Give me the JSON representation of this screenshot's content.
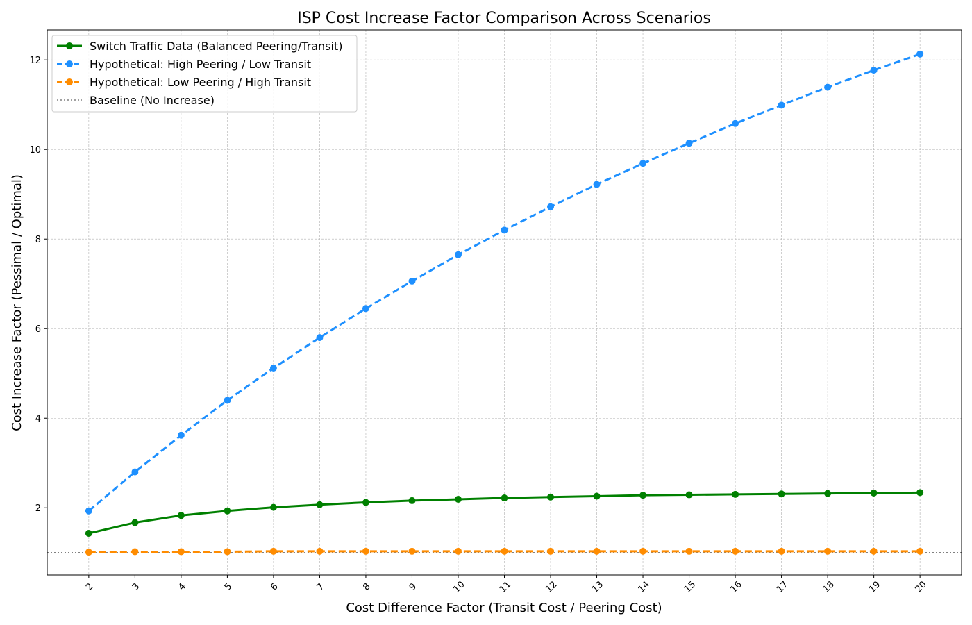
{
  "chart_data": {
    "type": "line",
    "title": "ISP Cost Increase Factor Comparison Across Scenarios",
    "xlabel": "Cost Difference Factor (Transit Cost / Peering Cost)",
    "ylabel": "Cost Increase Factor (Pessimal / Optimal)",
    "x": [
      2,
      3,
      4,
      5,
      6,
      7,
      8,
      9,
      10,
      11,
      12,
      13,
      14,
      15,
      16,
      17,
      18,
      19,
      20
    ],
    "xlim": [
      1.1,
      20.9
    ],
    "ylim": [
      0.5,
      12.67
    ],
    "yticks": [
      2,
      4,
      6,
      8,
      10,
      12
    ],
    "grid": true,
    "legend_position": "top-left",
    "series": [
      {
        "name": "Switch Traffic Data (Balanced Peering/Transit)",
        "color": "#008000",
        "style": "solid",
        "values": [
          1.43,
          1.67,
          1.83,
          1.93,
          2.01,
          2.07,
          2.12,
          2.16,
          2.19,
          2.22,
          2.24,
          2.26,
          2.28,
          2.29,
          2.3,
          2.31,
          2.32,
          2.33,
          2.34
        ]
      },
      {
        "name": "Hypothetical: High Peering / Low Transit",
        "color": "#1e90ff",
        "style": "dashed",
        "values": [
          1.93,
          2.8,
          3.62,
          4.4,
          5.12,
          5.8,
          6.45,
          7.06,
          7.65,
          8.2,
          8.72,
          9.22,
          9.69,
          10.14,
          10.58,
          10.99,
          11.39,
          11.77,
          12.13
        ]
      },
      {
        "name": "Hypothetical: Low Peering / High Transit",
        "color": "#ff8c00",
        "style": "dashed",
        "values": [
          1.01,
          1.02,
          1.02,
          1.02,
          1.03,
          1.03,
          1.03,
          1.03,
          1.03,
          1.03,
          1.03,
          1.03,
          1.03,
          1.03,
          1.03,
          1.03,
          1.03,
          1.03,
          1.03
        ]
      }
    ],
    "baseline": {
      "name": "Baseline (No Increase)",
      "value": 1.0,
      "color": "#808080",
      "style": "dotted"
    }
  }
}
